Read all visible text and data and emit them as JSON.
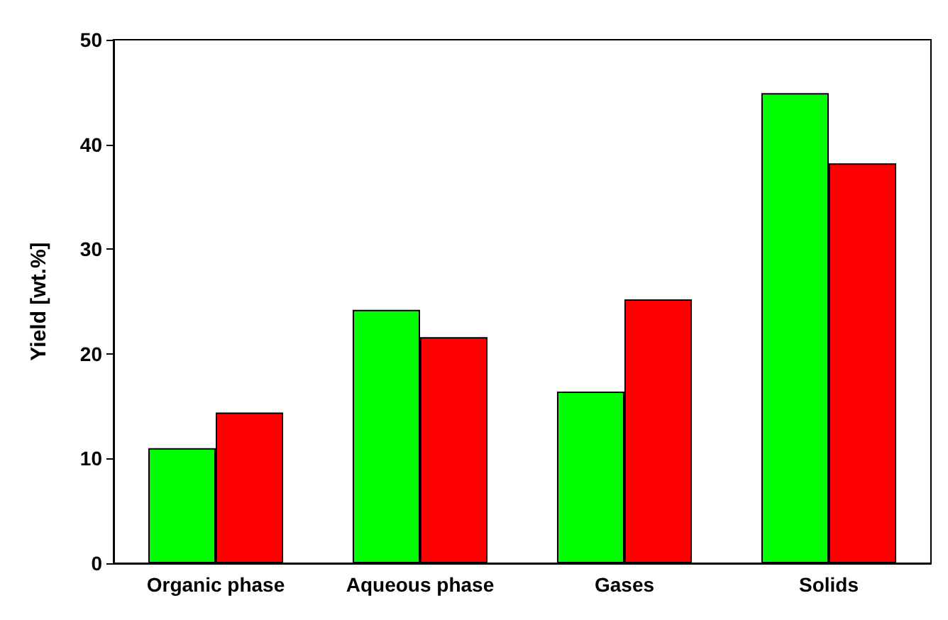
{
  "chart_data": {
    "type": "bar",
    "ylabel": "Yield [wt.%]",
    "categories": [
      "Organic phase",
      "Aqueous phase",
      "Gases",
      "Solids"
    ],
    "series": [
      {
        "color": "#00ff00",
        "values": [
          11.0,
          24.2,
          16.4,
          44.9
        ]
      },
      {
        "color": "#ff0000",
        "values": [
          14.4,
          21.6,
          25.2,
          38.2
        ]
      }
    ],
    "ylim": [
      0,
      50
    ],
    "yticks": [
      0,
      10,
      20,
      30,
      40,
      50
    ],
    "grid": false
  }
}
